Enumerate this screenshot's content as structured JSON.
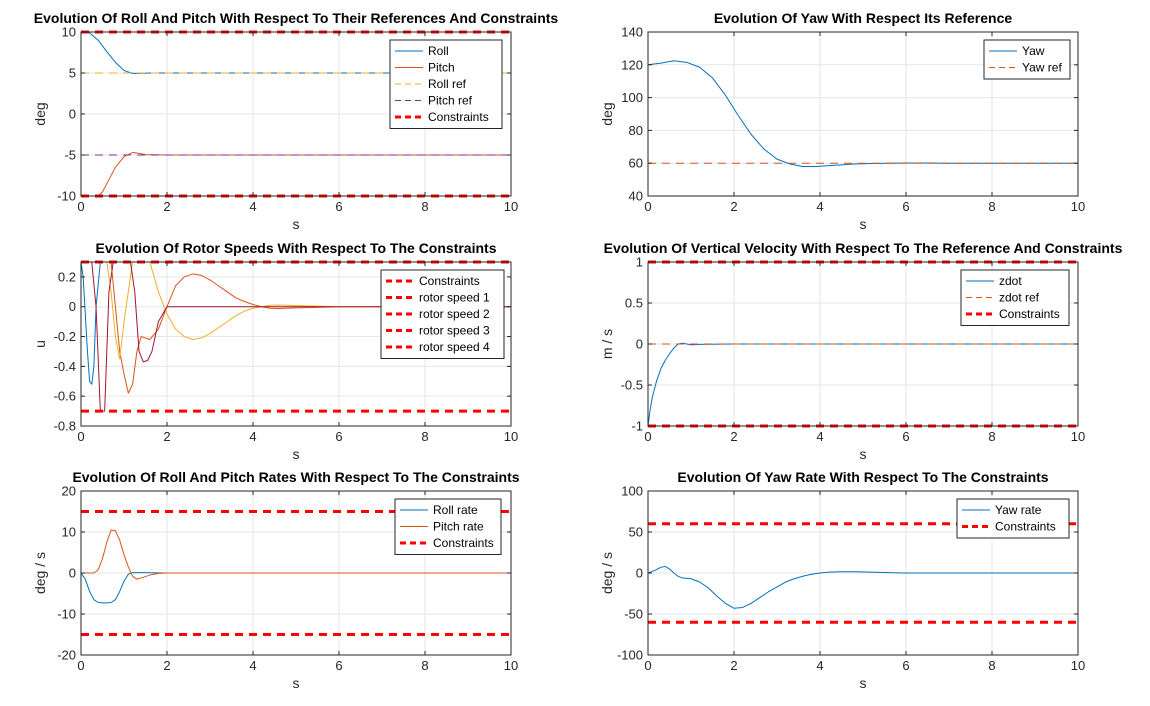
{
  "colors": {
    "blue": "#0072BD",
    "orange": "#D95319",
    "yellow": "#EDB120",
    "purple": "#7E2F8E",
    "maroon": "#A2142F",
    "constraint": "#FF0000",
    "grid": "#E6E6E6",
    "axis": "#262626"
  },
  "chart_data": [
    {
      "type": "line",
      "title": "Evolution Of Roll And Pitch With Respect To Their References And Constraints",
      "xlabel": "s",
      "ylabel": "deg",
      "xlim": [
        0,
        10
      ],
      "ylim": [
        -10,
        10
      ],
      "xticks": [
        "0",
        "2",
        "4",
        "6",
        "8",
        "10"
      ],
      "yticks": [
        "-10",
        "-5",
        "0",
        "5",
        "10"
      ],
      "ytick_values": [
        -10,
        -5,
        0,
        5,
        10
      ],
      "grid": true,
      "legend": "top-right",
      "series": [
        {
          "name": "Roll",
          "color": "#0072BD",
          "style": "solid",
          "x": [
            0,
            0.2,
            0.4,
            0.6,
            0.8,
            1.0,
            1.2,
            1.4,
            1.6,
            2,
            3,
            10
          ],
          "y": [
            10,
            9.9,
            9.0,
            7.6,
            6.3,
            5.3,
            4.95,
            4.95,
            5.0,
            5.0,
            5.0,
            5.0
          ]
        },
        {
          "name": "Pitch",
          "color": "#D95319",
          "style": "solid",
          "x": [
            0,
            0.4,
            0.5,
            0.6,
            0.8,
            1.0,
            1.2,
            1.3,
            1.5,
            2,
            3,
            10
          ],
          "y": [
            -10,
            -10,
            -9.5,
            -8.5,
            -6.5,
            -5.2,
            -4.7,
            -4.75,
            -4.95,
            -5.0,
            -5.0,
            -5.0
          ]
        },
        {
          "name": "Roll ref",
          "color": "#EDB120",
          "style": "dash",
          "x": [
            0,
            10
          ],
          "y": [
            5,
            5
          ]
        },
        {
          "name": "Pitch ref",
          "color": "#7E2F8E",
          "style": "dash",
          "x": [
            0,
            10
          ],
          "y": [
            -5,
            -5
          ]
        },
        {
          "name": "Constraints",
          "color": "#FF0000",
          "style": "constraint",
          "x": [
            0,
            10
          ],
          "y": [
            10,
            10
          ],
          "y2": [
            -10,
            -10
          ]
        }
      ]
    },
    {
      "type": "line",
      "title": "Evolution Of Yaw With Respect Its Reference",
      "xlabel": "s",
      "ylabel": "deg",
      "xlim": [
        0,
        10
      ],
      "ylim": [
        40,
        140
      ],
      "xticks": [
        "0",
        "2",
        "4",
        "6",
        "8",
        "10"
      ],
      "yticks": [
        "40",
        "60",
        "80",
        "100",
        "120",
        "140"
      ],
      "ytick_values": [
        40,
        60,
        80,
        100,
        120,
        140
      ],
      "grid": true,
      "legend": "top-right",
      "series": [
        {
          "name": "Yaw",
          "color": "#0072BD",
          "style": "solid",
          "x": [
            0,
            0.3,
            0.6,
            0.9,
            1.2,
            1.5,
            1.8,
            2.1,
            2.4,
            2.7,
            3.0,
            3.3,
            3.6,
            3.9,
            4.2,
            4.5,
            4.8,
            5.2,
            5.6,
            6.0,
            6.5,
            7,
            8,
            10
          ],
          "y": [
            120,
            121,
            122.5,
            121.5,
            118.5,
            112,
            101.5,
            89,
            77.5,
            68.5,
            62.5,
            59.5,
            58,
            58,
            58.5,
            59,
            59.5,
            59.8,
            60,
            60.1,
            60.1,
            60,
            60,
            60
          ]
        },
        {
          "name": "Yaw ref",
          "color": "#D95319",
          "style": "dash",
          "x": [
            0,
            10
          ],
          "y": [
            60,
            60
          ]
        }
      ]
    },
    {
      "type": "line",
      "title": "Evolution Of Rotor Speeds With Respect To The Constraints",
      "xlabel": "s",
      "ylabel": "u",
      "xlim": [
        0,
        10
      ],
      "ylim": [
        -0.8,
        0.3
      ],
      "xticks": [
        "0",
        "2",
        "4",
        "6",
        "8",
        "10"
      ],
      "yticks": [
        "-0.8",
        "-0.6",
        "-0.4",
        "-0.2",
        "0",
        "0.2"
      ],
      "ytick_values": [
        -0.8,
        -0.6,
        -0.4,
        -0.2,
        0,
        0.2
      ],
      "grid": true,
      "legend": "top-right",
      "legend_entries": [
        "Constraints",
        "rotor speed 1",
        "rotor speed 2",
        "rotor speed 3",
        "rotor speed 4"
      ],
      "series": [
        {
          "name": "rotor speed 1",
          "color": "#0072BD",
          "style": "solid",
          "x": [
            0,
            0.05,
            0.15,
            0.2,
            0.25,
            0.3,
            0.35,
            0.45,
            0.5,
            0.6,
            0.75,
            0.8,
            1.0,
            2,
            10
          ],
          "y": [
            0.3,
            0.2,
            -0.3,
            -0.5,
            -0.52,
            -0.4,
            0.0,
            0.3,
            0.3,
            0.3,
            0.3,
            0.3,
            0.3,
            0.3,
            0.3
          ]
        },
        {
          "name": "rotor speed 2",
          "color": "#D95319",
          "style": "solid",
          "x": [
            0,
            0.3,
            0.4,
            0.5,
            0.6,
            0.7,
            0.8,
            0.9,
            1.0,
            1.1,
            1.2,
            1.3,
            1.4,
            1.6,
            1.8,
            2.0,
            2.2,
            2.4,
            2.6,
            2.8,
            3.0,
            3.2,
            3.4,
            3.6,
            3.8,
            4.0,
            4.2,
            4.4,
            4.6,
            5.0,
            5.5,
            6.0,
            10
          ],
          "y": [
            0.3,
            0.3,
            0.3,
            0.3,
            0.3,
            0.3,
            0.0,
            -0.3,
            -0.45,
            -0.58,
            -0.52,
            -0.3,
            -0.2,
            -0.22,
            -0.15,
            0.0,
            0.14,
            0.2,
            0.22,
            0.21,
            0.18,
            0.14,
            0.1,
            0.06,
            0.035,
            0.015,
            0.0,
            -0.01,
            -0.012,
            -0.008,
            -0.004,
            0.0,
            0.0
          ]
        },
        {
          "name": "rotor speed 3",
          "color": "#EDB120",
          "style": "solid",
          "x": [
            0,
            0.6,
            0.7,
            0.8,
            0.9,
            1.0,
            1.2,
            1.4,
            1.6,
            1.7,
            1.8,
            2.0,
            2.2,
            2.4,
            2.6,
            2.8,
            3.0,
            3.2,
            3.4,
            3.6,
            3.8,
            4.0,
            4.2,
            4.4,
            4.6,
            5.0,
            5.5,
            6.0,
            10
          ],
          "y": [
            0.3,
            0.3,
            0.1,
            -0.2,
            -0.35,
            -0.1,
            0.3,
            0.3,
            0.3,
            0.2,
            0.1,
            -0.05,
            -0.15,
            -0.2,
            -0.22,
            -0.21,
            -0.18,
            -0.14,
            -0.1,
            -0.06,
            -0.03,
            -0.01,
            0.0,
            0.01,
            0.012,
            0.008,
            0.004,
            0.0,
            0.0
          ]
        },
        {
          "name": "rotor speed 4",
          "color": "#A2142F",
          "style": "solid",
          "x": [
            0,
            0.25,
            0.35,
            0.45,
            0.55,
            0.6,
            0.65,
            0.75,
            0.85,
            1.0,
            1.05,
            1.15,
            1.25,
            1.35,
            1.45,
            1.55,
            1.65,
            1.8,
            2.0,
            2.5,
            10
          ],
          "y": [
            0.3,
            0.3,
            0.0,
            -0.7,
            -0.7,
            -0.3,
            0.1,
            0.3,
            0.3,
            0.3,
            0.3,
            0.3,
            0.1,
            -0.3,
            -0.37,
            -0.36,
            -0.3,
            -0.1,
            0.0,
            0.0,
            0.0
          ]
        },
        {
          "name": "Constraints",
          "color": "#FF0000",
          "style": "constraint",
          "x": [
            0,
            10
          ],
          "y": [
            0.3,
            0.3
          ],
          "y2": [
            -0.7,
            -0.7
          ]
        }
      ]
    },
    {
      "type": "line",
      "title": "Evolution Of Vertical Velocity With Respect To The Reference And Constraints",
      "xlabel": "s",
      "ylabel": "m / s",
      "xlim": [
        0,
        10
      ],
      "ylim": [
        -1,
        1
      ],
      "xticks": [
        "0",
        "2",
        "4",
        "6",
        "8",
        "10"
      ],
      "yticks": [
        "-1",
        "-0.5",
        "0",
        "0.5",
        "1"
      ],
      "ytick_values": [
        -1,
        -0.5,
        0,
        0.5,
        1
      ],
      "grid": true,
      "legend": "top-right",
      "series": [
        {
          "name": "zdot",
          "color": "#0072BD",
          "style": "solid",
          "x": [
            0,
            0.05,
            0.1,
            0.2,
            0.3,
            0.4,
            0.5,
            0.6,
            0.7,
            0.8,
            0.9,
            1.0,
            1.2,
            2,
            10
          ],
          "y": [
            -1.0,
            -0.8,
            -0.65,
            -0.45,
            -0.3,
            -0.2,
            -0.12,
            -0.05,
            0.0,
            0.01,
            0.0,
            -0.01,
            -0.005,
            0.0,
            0.0
          ]
        },
        {
          "name": "zdot ref",
          "color": "#D95319",
          "style": "dash",
          "x": [
            0,
            10
          ],
          "y": [
            0,
            0
          ]
        },
        {
          "name": "Constraints",
          "color": "#FF0000",
          "style": "constraint",
          "x": [
            0,
            10
          ],
          "y": [
            1,
            1
          ],
          "y2": [
            -1,
            -1
          ]
        }
      ]
    },
    {
      "type": "line",
      "title": "Evolution Of Roll And Pitch Rates With Respect To The Constraints",
      "xlabel": "s",
      "ylabel": "deg / s",
      "xlim": [
        0,
        10
      ],
      "ylim": [
        -20,
        20
      ],
      "xticks": [
        "0",
        "2",
        "4",
        "6",
        "8",
        "10"
      ],
      "yticks": [
        "-20",
        "-10",
        "0",
        "10",
        "20"
      ],
      "ytick_values": [
        -20,
        -10,
        0,
        10,
        20
      ],
      "grid": true,
      "legend": "top-right",
      "series": [
        {
          "name": "Roll rate",
          "color": "#0072BD",
          "style": "solid",
          "x": [
            0,
            0.1,
            0.2,
            0.3,
            0.4,
            0.5,
            0.6,
            0.7,
            0.8,
            0.9,
            1.0,
            1.1,
            1.2,
            1.4,
            2,
            10
          ],
          "y": [
            0,
            -1.5,
            -4.5,
            -6.5,
            -7.2,
            -7.3,
            -7.3,
            -7.2,
            -6.5,
            -4.5,
            -2.0,
            -0.3,
            0.1,
            0.1,
            0,
            0
          ]
        },
        {
          "name": "Pitch rate",
          "color": "#D95319",
          "style": "solid",
          "x": [
            0,
            0.3,
            0.4,
            0.5,
            0.6,
            0.7,
            0.8,
            0.9,
            1.0,
            1.1,
            1.2,
            1.3,
            1.4,
            1.6,
            1.8,
            2.0,
            2.5,
            10
          ],
          "y": [
            0,
            0,
            0.8,
            3.5,
            7.5,
            10.5,
            10.3,
            8.0,
            4.5,
            1.5,
            -0.8,
            -1.5,
            -1.2,
            -0.5,
            -0.1,
            0.0,
            0,
            0
          ]
        },
        {
          "name": "Constraints",
          "color": "#FF0000",
          "style": "constraint",
          "x": [
            0,
            10
          ],
          "y": [
            15,
            15
          ],
          "y2": [
            -15,
            -15
          ]
        }
      ]
    },
    {
      "type": "line",
      "title": "Evolution Of Yaw Rate With Respect To The Constraints",
      "xlabel": "s",
      "ylabel": "deg / s",
      "xlim": [
        0,
        10
      ],
      "ylim": [
        -100,
        100
      ],
      "xticks": [
        "0",
        "2",
        "4",
        "6",
        "8",
        "10"
      ],
      "yticks": [
        "-100",
        "-50",
        "0",
        "50",
        "100"
      ],
      "ytick_values": [
        -100,
        -50,
        0,
        50,
        100
      ],
      "grid": true,
      "legend": "top-right",
      "series": [
        {
          "name": "Yaw rate",
          "color": "#0072BD",
          "style": "solid",
          "x": [
            0,
            0.15,
            0.3,
            0.4,
            0.5,
            0.6,
            0.7,
            0.8,
            0.9,
            1.0,
            1.1,
            1.2,
            1.4,
            1.6,
            1.8,
            2.0,
            2.2,
            2.4,
            2.6,
            2.8,
            3.0,
            3.2,
            3.4,
            3.6,
            3.8,
            4.0,
            4.2,
            4.5,
            4.8,
            5.2,
            5.6,
            6.0,
            7,
            8,
            10
          ],
          "y": [
            0,
            3,
            7,
            8,
            5,
            0,
            -4,
            -6,
            -6.5,
            -7,
            -9,
            -11,
            -18,
            -28,
            -37,
            -43,
            -42,
            -37,
            -30,
            -23,
            -17,
            -11,
            -7,
            -4,
            -1.5,
            0,
            1,
            1.5,
            1.5,
            1,
            0.5,
            0,
            0,
            0,
            0
          ]
        },
        {
          "name": "Constraints",
          "color": "#FF0000",
          "style": "constraint",
          "x": [
            0,
            10
          ],
          "y": [
            60,
            60
          ],
          "y2": [
            -60,
            -60
          ]
        }
      ]
    }
  ]
}
